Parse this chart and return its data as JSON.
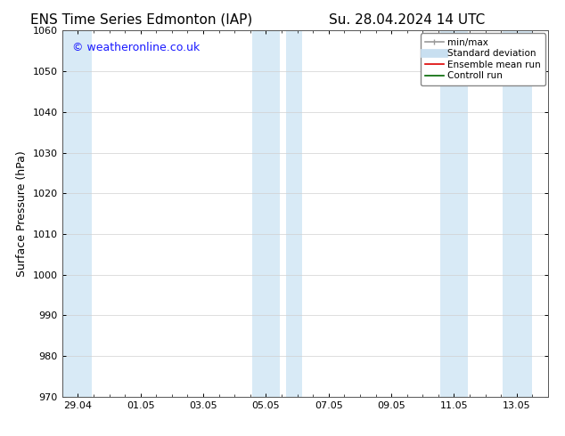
{
  "title_left": "ENS Time Series Edmonton (IAP)",
  "title_right": "Su. 28.04.2024 14 UTC",
  "ylabel": "Surface Pressure (hPa)",
  "ylim": [
    970,
    1060
  ],
  "yticks": [
    970,
    980,
    990,
    1000,
    1010,
    1020,
    1030,
    1040,
    1050,
    1060
  ],
  "xtick_labels": [
    "29.04",
    "01.05",
    "03.05",
    "05.05",
    "07.05",
    "09.05",
    "11.05",
    "13.05"
  ],
  "xtick_positions": [
    0,
    2,
    4,
    6,
    8,
    10,
    12,
    14
  ],
  "xlim": [
    -0.5,
    15.0
  ],
  "bg_color": "#ffffff",
  "plot_bg_color": "#ffffff",
  "shaded_regions": [
    {
      "start": -0.5,
      "end": 0.5,
      "color": "#daeaf7"
    },
    {
      "start": 5.5,
      "end": 6.5,
      "color": "#daeaf7"
    },
    {
      "start": 6.6,
      "end": 7.0,
      "color": "#daeaf7"
    },
    {
      "start": 11.0,
      "end": 12.0,
      "color": "#daeaf7"
    },
    {
      "start": 12.5,
      "end": 13.5,
      "color": "#daeaf7"
    }
  ],
  "watermark_text": "© weatheronline.co.uk",
  "watermark_color": "#1a1aff",
  "watermark_fontsize": 9,
  "legend_items": [
    {
      "label": "min/max",
      "color": "#999999",
      "lw": 1.2
    },
    {
      "label": "Standard deviation",
      "color": "#c8dff0",
      "lw": 7
    },
    {
      "label": "Ensemble mean run",
      "color": "#dd0000",
      "lw": 1.2
    },
    {
      "label": "Controll run",
      "color": "#006600",
      "lw": 1.2
    }
  ],
  "grid_color": "#d0d0d0",
  "tick_color": "#000000",
  "spine_color": "#555555",
  "fontsize_title": 11,
  "fontsize_labels": 9,
  "fontsize_ticks": 8,
  "fontsize_watermark": 9,
  "fontsize_legend": 7.5
}
